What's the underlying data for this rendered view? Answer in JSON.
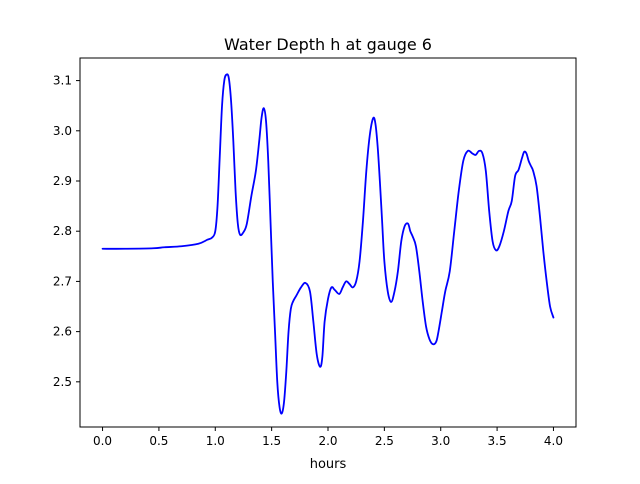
{
  "chart_data": {
    "type": "line",
    "title": "Water Depth h at gauge 6",
    "xlabel": "hours",
    "ylabel": "",
    "xlim": [
      -0.2,
      4.2
    ],
    "ylim": [
      2.41,
      3.145
    ],
    "x_ticks": [
      0.0,
      0.5,
      1.0,
      1.5,
      2.0,
      2.5,
      3.0,
      3.5,
      4.0
    ],
    "x_tick_labels": [
      "0.0",
      "0.5",
      "1.0",
      "1.5",
      "2.0",
      "2.5",
      "3.0",
      "3.5",
      "4.0"
    ],
    "y_ticks": [
      2.5,
      2.6,
      2.7,
      2.8,
      2.9,
      3.0,
      3.1
    ],
    "y_tick_labels": [
      "2.5",
      "2.6",
      "2.7",
      "2.8",
      "2.9",
      "3.0",
      "3.1"
    ],
    "grid": false,
    "legend": "none",
    "series": [
      {
        "color": "#0000ff",
        "x": [
          0.0,
          0.2,
          0.45,
          0.55,
          0.7,
          0.85,
          0.93,
          0.97,
          1.0,
          1.02,
          1.04,
          1.06,
          1.08,
          1.1,
          1.12,
          1.14,
          1.16,
          1.18,
          1.2,
          1.22,
          1.25,
          1.28,
          1.32,
          1.36,
          1.39,
          1.41,
          1.43,
          1.45,
          1.47,
          1.49,
          1.51,
          1.53,
          1.55,
          1.57,
          1.59,
          1.61,
          1.63,
          1.65,
          1.67,
          1.69,
          1.72,
          1.76,
          1.8,
          1.84,
          1.87,
          1.9,
          1.93,
          1.95,
          1.97,
          2.0,
          2.03,
          2.06,
          2.1,
          2.13,
          2.16,
          2.19,
          2.22,
          2.25,
          2.28,
          2.31,
          2.34,
          2.37,
          2.4,
          2.42,
          2.44,
          2.46,
          2.48,
          2.5,
          2.53,
          2.56,
          2.59,
          2.62,
          2.65,
          2.68,
          2.71,
          2.73,
          2.75,
          2.78,
          2.81,
          2.84,
          2.87,
          2.9,
          2.93,
          2.96,
          2.98,
          3.01,
          3.04,
          3.08,
          3.12,
          3.16,
          3.2,
          3.24,
          3.28,
          3.31,
          3.34,
          3.37,
          3.4,
          3.43,
          3.46,
          3.49,
          3.52,
          3.56,
          3.6,
          3.63,
          3.66,
          3.69,
          3.72,
          3.74,
          3.76,
          3.78,
          3.8,
          3.82,
          3.85,
          3.88,
          3.91,
          3.94,
          3.97,
          4.0
        ],
        "y": [
          2.765,
          2.765,
          2.766,
          2.768,
          2.77,
          2.775,
          2.783,
          2.787,
          2.8,
          2.85,
          2.95,
          3.05,
          3.1,
          3.112,
          3.105,
          3.06,
          2.98,
          2.88,
          2.815,
          2.793,
          2.798,
          2.815,
          2.87,
          2.92,
          2.98,
          3.025,
          3.045,
          3.02,
          2.94,
          2.82,
          2.7,
          2.6,
          2.5,
          2.45,
          2.437,
          2.46,
          2.52,
          2.6,
          2.645,
          2.66,
          2.672,
          2.688,
          2.697,
          2.68,
          2.62,
          2.555,
          2.53,
          2.55,
          2.62,
          2.665,
          2.688,
          2.683,
          2.675,
          2.688,
          2.7,
          2.695,
          2.688,
          2.7,
          2.74,
          2.82,
          2.92,
          2.99,
          3.025,
          3.015,
          2.97,
          2.9,
          2.82,
          2.74,
          2.68,
          2.659,
          2.68,
          2.72,
          2.78,
          2.81,
          2.815,
          2.8,
          2.79,
          2.77,
          2.72,
          2.66,
          2.61,
          2.585,
          2.575,
          2.58,
          2.6,
          2.64,
          2.68,
          2.72,
          2.8,
          2.88,
          2.94,
          2.96,
          2.955,
          2.952,
          2.96,
          2.955,
          2.92,
          2.84,
          2.78,
          2.762,
          2.77,
          2.8,
          2.84,
          2.86,
          2.91,
          2.922,
          2.945,
          2.958,
          2.955,
          2.94,
          2.93,
          2.92,
          2.89,
          2.83,
          2.76,
          2.7,
          2.65,
          2.628
        ]
      }
    ]
  }
}
